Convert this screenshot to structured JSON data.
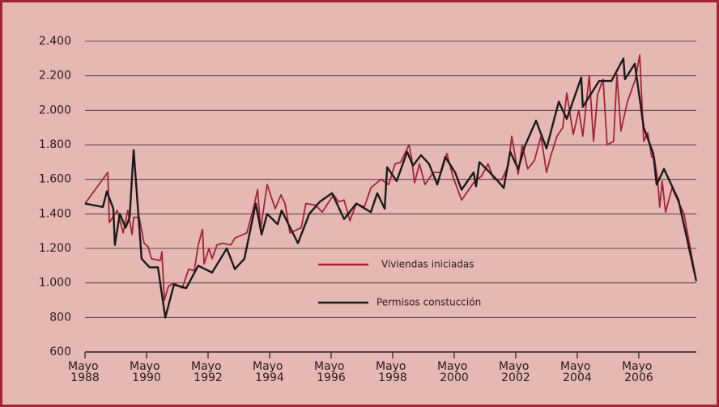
{
  "chart_data": {
    "type": "line",
    "xlim": [
      1988.33,
      2008.2
    ],
    "ylim": [
      600,
      2400
    ],
    "yticks": [
      600,
      800,
      {
        "value": 1000,
        "label": "1.000"
      },
      {
        "value": 1200,
        "label": "1.200"
      },
      {
        "value": 1400,
        "label": "1.400"
      },
      {
        "value": 1600,
        "label": "1.600"
      },
      {
        "value": 1800,
        "label": "1.800"
      },
      {
        "value": 2000,
        "label": "2.000"
      },
      {
        "value": 2200,
        "label": "2.200"
      },
      {
        "value": 2400,
        "label": "2.400"
      }
    ],
    "xticks": [
      {
        "value": 1988.33,
        "label": "Mayo 1988"
      },
      {
        "value": 1990.33,
        "label": "Mayo 1990"
      },
      {
        "value": 1992.33,
        "label": "Mayo 1992"
      },
      {
        "value": 1994.33,
        "label": "Mayo 1994"
      },
      {
        "value": 1996.33,
        "label": "Mayo 1996"
      },
      {
        "value": 1998.33,
        "label": "Mayo 1998"
      },
      {
        "value": 2000.33,
        "label": "Mayo 2000"
      },
      {
        "value": 2002.33,
        "label": "Mayo 2002"
      },
      {
        "value": 2004.33,
        "label": "Mayo 2004"
      },
      {
        "value": 2006.33,
        "label": "Mayo 2006"
      }
    ],
    "grid": true,
    "legend": "center",
    "series": [
      {
        "name": "Viviendas iniciadas",
        "color": "#a3233a",
        "x": [
          1988.33,
          1989.07,
          1989.12,
          1989.38,
          1989.57,
          1989.72,
          1989.86,
          1989.91,
          1990.09,
          1990.25,
          1990.38,
          1990.49,
          1990.78,
          1990.83,
          1990.91,
          1991.04,
          1991.22,
          1991.49,
          1991.7,
          1991.88,
          1992.01,
          1992.15,
          1992.2,
          1992.36,
          1992.46,
          1992.62,
          1992.8,
          1993.07,
          1993.2,
          1993.59,
          1993.8,
          1993.94,
          1994.04,
          1994.25,
          1994.51,
          1994.7,
          1994.83,
          1994.99,
          1995.36,
          1995.51,
          1995.83,
          1996.04,
          1996.22,
          1996.41,
          1996.57,
          1996.75,
          1996.94,
          1997.15,
          1997.41,
          1997.62,
          1997.94,
          1998.2,
          1998.41,
          1998.59,
          1998.86,
          1998.94,
          1999.04,
          1999.2,
          1999.38,
          1999.65,
          1999.91,
          2000.09,
          2000.3,
          2000.57,
          2000.96,
          2001.22,
          2001.43,
          2001.62,
          2001.88,
          2002.09,
          2002.2,
          2002.41,
          2002.54,
          2002.72,
          2002.94,
          2003.15,
          2003.33,
          2003.46,
          2003.67,
          2003.86,
          2003.99,
          2004.2,
          2004.38,
          2004.51,
          2004.72,
          2004.86,
          2004.99,
          2005.17,
          2005.3,
          2005.51,
          2005.62,
          2005.75,
          2005.96,
          2006.22,
          2006.36,
          2006.49,
          2006.62,
          2006.75,
          2006.83,
          2006.94,
          2007.01,
          2007.09,
          2007.2,
          2007.41,
          2007.8,
          2008.2
        ],
        "values": [
          1460,
          1640,
          1350,
          1420,
          1290,
          1420,
          1280,
          1380,
          1380,
          1230,
          1210,
          1140,
          1130,
          1180,
          900,
          980,
          1000,
          970,
          1080,
          1070,
          1220,
          1310,
          1110,
          1200,
          1140,
          1220,
          1230,
          1220,
          1260,
          1290,
          1430,
          1540,
          1310,
          1570,
          1430,
          1510,
          1460,
          1290,
          1320,
          1460,
          1450,
          1410,
          1460,
          1510,
          1470,
          1480,
          1360,
          1460,
          1440,
          1550,
          1600,
          1570,
          1690,
          1700,
          1800,
          1730,
          1580,
          1690,
          1570,
          1640,
          1640,
          1750,
          1610,
          1480,
          1580,
          1620,
          1690,
          1600,
          1600,
          1680,
          1850,
          1630,
          1800,
          1660,
          1710,
          1850,
          1640,
          1730,
          1850,
          1900,
          2100,
          1860,
          2000,
          1850,
          2200,
          1820,
          2090,
          2180,
          1800,
          1820,
          2210,
          1880,
          2050,
          2180,
          2320,
          1820,
          1870,
          1730,
          1730,
          1600,
          1440,
          1590,
          1410,
          1550,
          1400,
          1010
        ]
      },
      {
        "name": "Permisos constucción",
        "color": "#1a1a1a",
        "x": [
          1988.33,
          1988.91,
          1989.04,
          1989.25,
          1989.3,
          1989.46,
          1989.65,
          1989.78,
          1989.91,
          1990.17,
          1990.43,
          1990.7,
          1990.94,
          1991.22,
          1991.62,
          1992.01,
          1992.46,
          1992.94,
          1993.2,
          1993.51,
          1993.88,
          1994.07,
          1994.25,
          1994.59,
          1994.72,
          1995.25,
          1995.62,
          1995.96,
          1996.36,
          1996.75,
          1997.15,
          1997.62,
          1997.83,
          1998.07,
          1998.15,
          1998.46,
          1998.8,
          1998.99,
          1999.25,
          1999.51,
          1999.78,
          2000.04,
          2000.36,
          2000.57,
          2000.96,
          2001.04,
          2001.15,
          2001.49,
          2001.75,
          2001.94,
          2002.15,
          2002.41,
          2002.62,
          2002.99,
          2003.33,
          2003.73,
          2003.99,
          2004.46,
          2004.51,
          2005.04,
          2005.44,
          2005.83,
          2005.88,
          2006.2,
          2006.49,
          2006.8,
          2006.91,
          2007.15,
          2007.62,
          2008.2
        ],
        "values": [
          1460,
          1440,
          1530,
          1430,
          1220,
          1400,
          1320,
          1380,
          1770,
          1140,
          1090,
          1090,
          800,
          990,
          970,
          1100,
          1060,
          1200,
          1080,
          1140,
          1460,
          1280,
          1400,
          1340,
          1420,
          1230,
          1400,
          1470,
          1520,
          1370,
          1460,
          1410,
          1520,
          1430,
          1670,
          1590,
          1760,
          1680,
          1740,
          1690,
          1570,
          1730,
          1640,
          1540,
          1640,
          1560,
          1700,
          1640,
          1590,
          1550,
          1760,
          1660,
          1790,
          1940,
          1780,
          2050,
          1950,
          2190,
          2020,
          2170,
          2170,
          2300,
          2180,
          2270,
          1900,
          1750,
          1570,
          1660,
          1480,
          1010
        ]
      }
    ]
  }
}
